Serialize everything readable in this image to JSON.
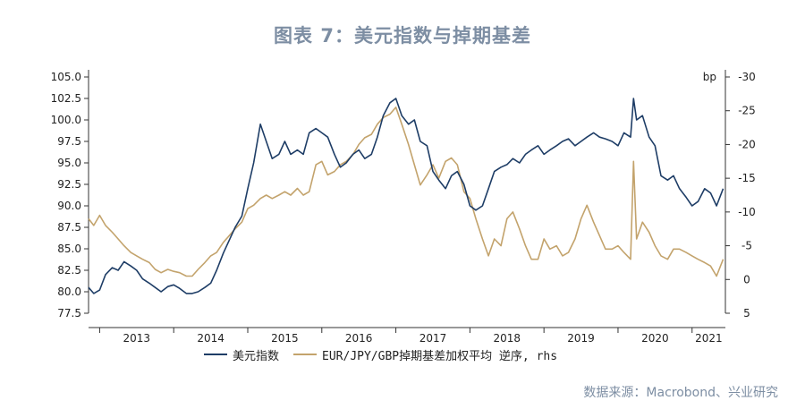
{
  "title": "图表 7：美元指数与掉期基差",
  "source": "数据来源：Macrobond、兴业研究",
  "colors": {
    "dxy": "#1e3d66",
    "basis": "#c3a36c",
    "title": "#7d8ea3",
    "axis": "#333333"
  },
  "chart_data": {
    "type": "line",
    "title": "图表 7：美元指数与掉期基差",
    "x_axis": {
      "ticks": [
        "2013",
        "2014",
        "2015",
        "2016",
        "2017",
        "2018",
        "2019",
        "2020",
        "2021"
      ],
      "range": [
        2012.85,
        2021.45
      ]
    },
    "y_left": {
      "range": [
        77.5,
        105.0
      ],
      "ticks": [
        "77.5",
        "80.0",
        "82.5",
        "85.0",
        "87.5",
        "90.0",
        "92.5",
        "95.0",
        "97.5",
        "100.0",
        "102.5",
        "105.0"
      ]
    },
    "y_right": {
      "label": "bp",
      "reversed": true,
      "range": [
        -30,
        5
      ],
      "ticks": [
        "-30",
        "-25",
        "-20",
        "-15",
        "-10",
        "-5",
        "0",
        "5"
      ]
    },
    "series": [
      {
        "name": "美元指数",
        "axis": "left",
        "x": [
          2012.85,
          2012.92,
          2013.0,
          2013.08,
          2013.17,
          2013.25,
          2013.33,
          2013.42,
          2013.5,
          2013.58,
          2013.67,
          2013.75,
          2013.83,
          2013.92,
          2014.0,
          2014.08,
          2014.17,
          2014.25,
          2014.33,
          2014.42,
          2014.5,
          2014.58,
          2014.67,
          2014.75,
          2014.83,
          2014.92,
          2015.0,
          2015.08,
          2015.17,
          2015.25,
          2015.33,
          2015.42,
          2015.5,
          2015.58,
          2015.67,
          2015.75,
          2015.83,
          2015.92,
          2016.0,
          2016.08,
          2016.17,
          2016.25,
          2016.33,
          2016.42,
          2016.5,
          2016.58,
          2016.67,
          2016.75,
          2016.83,
          2016.92,
          2017.0,
          2017.08,
          2017.17,
          2017.25,
          2017.33,
          2017.42,
          2017.5,
          2017.58,
          2017.67,
          2017.75,
          2017.83,
          2017.92,
          2018.0,
          2018.08,
          2018.17,
          2018.25,
          2018.33,
          2018.42,
          2018.5,
          2018.58,
          2018.67,
          2018.75,
          2018.83,
          2018.92,
          2019.0,
          2019.08,
          2019.17,
          2019.25,
          2019.33,
          2019.42,
          2019.5,
          2019.58,
          2019.67,
          2019.75,
          2019.83,
          2019.92,
          2020.0,
          2020.08,
          2020.17,
          2020.21,
          2020.25,
          2020.33,
          2020.42,
          2020.5,
          2020.58,
          2020.67,
          2020.75,
          2020.83,
          2020.92,
          2021.0,
          2021.08,
          2021.17,
          2021.25,
          2021.33,
          2021.42
        ],
        "values": [
          80.5,
          79.8,
          80.2,
          82.0,
          82.8,
          82.5,
          83.5,
          83.0,
          82.5,
          81.5,
          81.0,
          80.5,
          80.0,
          80.6,
          80.8,
          80.4,
          79.8,
          79.8,
          80.0,
          80.5,
          81.0,
          82.5,
          84.5,
          86.0,
          87.5,
          88.8,
          92.0,
          95.0,
          99.5,
          97.5,
          95.5,
          96.0,
          97.5,
          96.0,
          96.5,
          96.0,
          98.5,
          99.0,
          98.5,
          98.0,
          96.0,
          94.5,
          95.0,
          96.0,
          96.5,
          95.5,
          96.0,
          98.0,
          100.5,
          102.0,
          102.5,
          100.5,
          99.5,
          100.0,
          97.5,
          97.0,
          94.0,
          93.0,
          92.0,
          93.5,
          94.0,
          92.5,
          90.0,
          89.5,
          90.0,
          92.0,
          94.0,
          94.5,
          94.8,
          95.5,
          95.0,
          96.0,
          96.5,
          97.0,
          96.0,
          96.5,
          97.0,
          97.5,
          97.8,
          97.0,
          97.5,
          98.0,
          98.5,
          98.0,
          97.8,
          97.5,
          97.0,
          98.5,
          98.0,
          102.5,
          100.0,
          100.5,
          98.0,
          97.0,
          93.5,
          93.0,
          93.5,
          92.0,
          91.0,
          90.0,
          90.5,
          92.0,
          91.5,
          90.0,
          92.0
        ]
      },
      {
        "name": "EUR/JPY/GBP掉期基差加权平均 逆序, rhs",
        "axis": "right",
        "x": [
          2012.85,
          2012.92,
          2013.0,
          2013.08,
          2013.17,
          2013.25,
          2013.33,
          2013.42,
          2013.5,
          2013.58,
          2013.67,
          2013.75,
          2013.83,
          2013.92,
          2014.0,
          2014.08,
          2014.17,
          2014.25,
          2014.33,
          2014.42,
          2014.5,
          2014.58,
          2014.67,
          2014.75,
          2014.83,
          2014.92,
          2015.0,
          2015.08,
          2015.17,
          2015.25,
          2015.33,
          2015.42,
          2015.5,
          2015.58,
          2015.67,
          2015.75,
          2015.83,
          2015.92,
          2016.0,
          2016.08,
          2016.17,
          2016.25,
          2016.33,
          2016.42,
          2016.5,
          2016.58,
          2016.67,
          2016.75,
          2016.83,
          2016.92,
          2017.0,
          2017.08,
          2017.17,
          2017.25,
          2017.33,
          2017.42,
          2017.5,
          2017.58,
          2017.67,
          2017.75,
          2017.83,
          2017.92,
          2018.0,
          2018.08,
          2018.17,
          2018.25,
          2018.33,
          2018.42,
          2018.5,
          2018.58,
          2018.67,
          2018.75,
          2018.83,
          2018.92,
          2019.0,
          2019.08,
          2019.17,
          2019.25,
          2019.33,
          2019.42,
          2019.5,
          2019.58,
          2019.67,
          2019.75,
          2019.83,
          2019.92,
          2020.0,
          2020.08,
          2020.17,
          2020.21,
          2020.25,
          2020.33,
          2020.42,
          2020.5,
          2020.58,
          2020.67,
          2020.75,
          2020.83,
          2020.92,
          2021.0,
          2021.08,
          2021.17,
          2021.25,
          2021.33,
          2021.42
        ],
        "values": [
          -9.0,
          -8.0,
          -9.5,
          -8.0,
          -7.0,
          -6.0,
          -5.0,
          -4.0,
          -3.5,
          -3.0,
          -2.5,
          -1.5,
          -1.0,
          -1.5,
          -1.2,
          -1.0,
          -0.5,
          -0.5,
          -1.5,
          -2.5,
          -3.5,
          -4.0,
          -5.5,
          -6.5,
          -7.5,
          -8.5,
          -10.5,
          -11.0,
          -12.0,
          -12.5,
          -12.0,
          -12.5,
          -13.0,
          -12.5,
          -13.5,
          -12.5,
          -13.0,
          -17.0,
          -17.5,
          -15.5,
          -16.0,
          -17.0,
          -17.5,
          -18.5,
          -20.0,
          -21.0,
          -21.5,
          -23.0,
          -24.0,
          -24.5,
          -25.5,
          -23.0,
          -20.0,
          -17.0,
          -14.0,
          -15.5,
          -17.0,
          -15.0,
          -17.5,
          -18.0,
          -17.0,
          -13.0,
          -12.0,
          -9.0,
          -6.0,
          -3.5,
          -6.0,
          -5.0,
          -9.0,
          -10.0,
          -7.5,
          -5.0,
          -3.0,
          -3.0,
          -6.0,
          -4.5,
          -5.0,
          -3.5,
          -4.0,
          -6.0,
          -9.0,
          -11.0,
          -8.5,
          -6.5,
          -4.5,
          -4.5,
          -5.0,
          -4.0,
          -3.0,
          -17.5,
          -6.0,
          -8.5,
          -7.0,
          -5.0,
          -3.5,
          -3.0,
          -4.5,
          -4.5,
          -4.0,
          -3.5,
          -3.0,
          -2.5,
          -2.0,
          -0.5,
          -3.0
        ]
      }
    ]
  }
}
